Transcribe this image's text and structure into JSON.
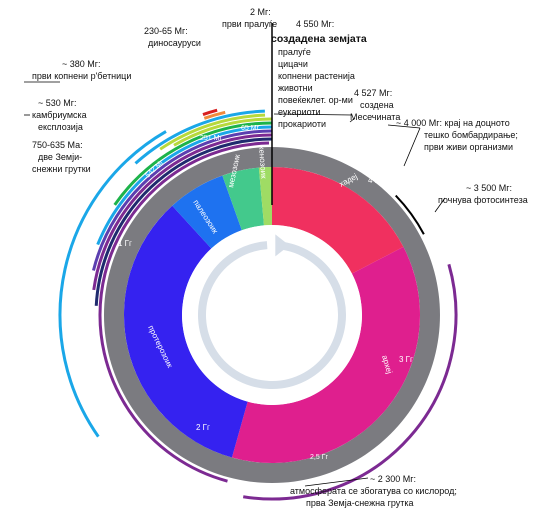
{
  "eras": [
    {
      "id": "hadean",
      "label": "хадеј",
      "color": "#f0305f"
    },
    {
      "id": "archean",
      "label": "археј",
      "color": "#df1f8e"
    },
    {
      "id": "proterozoic",
      "label": "протерозоик",
      "color": "#3522f0"
    },
    {
      "id": "paleozoic",
      "label": "палеозоик",
      "color": "#1e72f0"
    },
    {
      "id": "mesozoic",
      "label": "мезозоик",
      "color": "#43c98c"
    },
    {
      "id": "cenozoic",
      "label": "кенозоик",
      "color": "#9fdc64"
    }
  ],
  "era_ticks": [
    {
      "label": "4 Гг"
    },
    {
      "label": "3 Гг"
    },
    {
      "label": "2 Гг"
    },
    {
      "label": "1 Гг"
    }
  ],
  "ring_ticks": [
    {
      "label": "4,6 Гг"
    },
    {
      "label": "3,8 Гг"
    },
    {
      "label": "2,5 Гг"
    },
    {
      "label": "542 Мг"
    },
    {
      "label": "251 Мг"
    },
    {
      "label": "65 Мг"
    }
  ],
  "life_legend": [
    "пралуѓе",
    "цицачи",
    "копнени растенија",
    "животни",
    "повеќеклет. ор-ми",
    "еукариоти",
    "прокариоти"
  ],
  "annotations": {
    "humans_time": "2 Мг:",
    "humans_label": "први пралуѓе",
    "earth_time": "4 550 Мг:",
    "earth_label": "создадена земјата",
    "dino_time": "230-65 Мг:",
    "dino_label": "диносауруси",
    "land_time": "~ 380 Мг:",
    "land_label": "први копнени р'бетници",
    "cambrian_time": "~ 530 Мг:",
    "cambrian_l1": "камбриумска",
    "cambrian_l2": "експлозија",
    "snowball_time": "750-635 Ма:",
    "snowball_l1": "две Земји-",
    "snowball_l2": "снежни грутки",
    "moon_time": "4 527 Мг:",
    "moon_label": "создена",
    "moon_l2": "Месечината",
    "bomb_time": "~ 4 000 Мг: крај на доцното",
    "bomb_l2": "тешко бомбардирање;",
    "bomb_l3": "први живи организми",
    "photo_time": "~ 3 500 Мг:",
    "photo_label": "почнува фотосинтеза",
    "oxygen_time": "~ 2 300 Мг:",
    "oxygen_l2": "атмосферата се збогатува со кислород;",
    "oxygen_l3": "прва Земја-снежна грутка"
  },
  "colors": {
    "ring": "#7b7b80",
    "arrow": "#d6dee8",
    "arc_purple": "#7c2a92",
    "arc_navy": "#1f2a6e",
    "arc_blue": "#1aa7e8",
    "arc_green": "#1db34a",
    "arc_lime": "#b7d93c",
    "arc_orange": "#f08a3c",
    "arc_red": "#d81f1f"
  }
}
